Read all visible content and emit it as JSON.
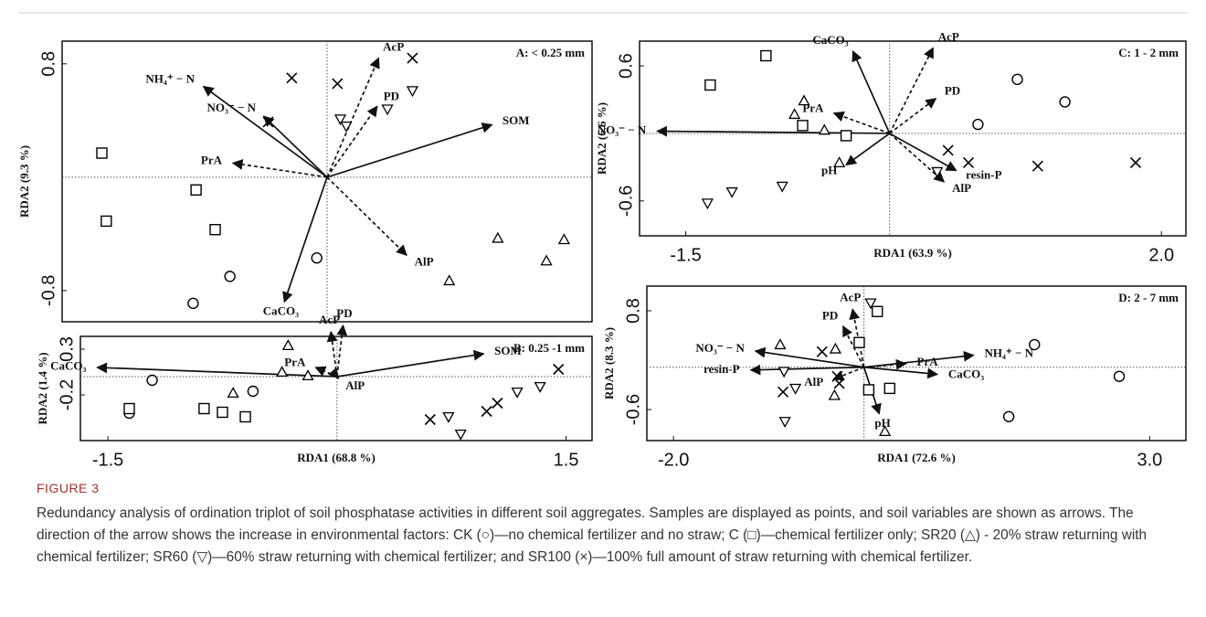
{
  "chart_data": [
    {
      "type": "scatter",
      "title": "A: < 0.25 mm",
      "ylabel": "RDA2 (9.3 %)",
      "xlim": [
        -1.8,
        1.8
      ],
      "ylim": [
        -1.02,
        0.96
      ],
      "yticks": [
        -0.8,
        0.8
      ],
      "series": [
        {
          "marker": "circle",
          "color": "#000000",
          "x": [
            -0.66,
            -0.91,
            -0.07
          ],
          "y": [
            -0.7,
            -0.89,
            -0.57
          ]
        },
        {
          "marker": "square",
          "color": "#000000",
          "x": [
            -1.53,
            -1.5,
            -0.89,
            -0.76
          ],
          "y": [
            0.17,
            -0.31,
            -0.09,
            -0.37
          ]
        },
        {
          "marker": "triangle-up",
          "color": "#000000",
          "x": [
            1.16,
            1.61,
            1.49,
            0.83
          ],
          "y": [
            -0.43,
            -0.44,
            -0.59,
            -0.73
          ]
        },
        {
          "marker": "triangle-down",
          "color": "#000000",
          "x": [
            0.58,
            0.41,
            0.09,
            0.13
          ],
          "y": [
            0.61,
            0.48,
            0.41,
            0.36
          ]
        },
        {
          "marker": "cross",
          "color": "#000000",
          "x": [
            -0.24,
            -0.4,
            0.07,
            0.58
          ],
          "y": [
            0.7,
            0.39,
            0.66,
            0.84
          ]
        }
      ],
      "arrows": [
        {
          "label": "NH₄⁺ − N",
          "style": "solid",
          "x": -0.84,
          "y": 0.64
        },
        {
          "label": "NO₃⁻ − N",
          "style": "solid",
          "x": -0.43,
          "y": 0.43
        },
        {
          "label": "SOM",
          "style": "solid",
          "x": 1.12,
          "y": 0.37
        },
        {
          "label": "CaCO₃",
          "style": "solid",
          "x": -0.29,
          "y": -0.88
        },
        {
          "label": "AcP",
          "style": "dashed",
          "x": 0.35,
          "y": 0.84
        },
        {
          "label": "PD",
          "style": "dashed",
          "x": 0.34,
          "y": 0.5
        },
        {
          "label": "PrA",
          "style": "dashed",
          "x": -0.64,
          "y": 0.1
        },
        {
          "label": "AlP",
          "style": "dashed",
          "x": 0.54,
          "y": -0.55
        }
      ]
    },
    {
      "type": "scatter",
      "title": "B: 0.25 -1 mm",
      "ylabel": "RDA2 (1.4 %)",
      "xlabel": "RDA1 (68.8 %)",
      "xlim": [
        -1.68,
        1.67
      ],
      "ylim": [
        -0.7,
        0.44
      ],
      "xticks": [
        -1.5,
        1.5
      ],
      "yticks": [
        -0.2,
        0.3
      ],
      "series": [
        {
          "marker": "circle",
          "color": "#000000",
          "x": [
            -1.21,
            -1.36,
            -0.55
          ],
          "y": [
            -0.04,
            -0.4,
            -0.16
          ]
        },
        {
          "marker": "square",
          "color": "#000000",
          "x": [
            -1.36,
            -0.87,
            -0.75,
            -0.6
          ],
          "y": [
            -0.35,
            -0.35,
            -0.39,
            -0.44
          ]
        },
        {
          "marker": "triangle-up",
          "color": "#000000",
          "x": [
            -0.32,
            -0.36,
            -0.19,
            -0.68
          ],
          "y": [
            0.34,
            0.05,
            0.01,
            -0.18
          ]
        },
        {
          "marker": "triangle-down",
          "color": "#000000",
          "x": [
            1.18,
            1.33,
            0.73,
            0.81
          ],
          "y": [
            -0.17,
            -0.11,
            -0.44,
            -0.63
          ]
        },
        {
          "marker": "cross",
          "color": "#000000",
          "x": [
            1.45,
            1.05,
            0.98,
            0.61
          ],
          "y": [
            0.08,
            -0.29,
            -0.38,
            -0.47
          ]
        }
      ],
      "arrows": [
        {
          "label": "CaCO₃",
          "style": "solid",
          "x": -1.57,
          "y": 0.1
        },
        {
          "label": "SOM",
          "style": "solid",
          "x": 0.96,
          "y": 0.25
        },
        {
          "label": "AcP",
          "style": "dashed",
          "x": -0.04,
          "y": 0.49
        },
        {
          "label": "PD",
          "style": "dashed",
          "x": 0.04,
          "y": 0.56
        },
        {
          "label": "PrA",
          "style": "dashed",
          "x": -0.14,
          "y": 0.1
        },
        {
          "label": "AlP",
          "style": "dashed",
          "x": 0.01,
          "y": -0.02
        }
      ]
    },
    {
      "type": "scatter",
      "title": "C: 1 - 2 mm",
      "ylabel": "RDA2 (6.6 %)",
      "xlabel": "RDA1 (63.9 %)",
      "xlim": [
        -1.84,
        2.18
      ],
      "ylim": [
        -0.91,
        0.82
      ],
      "xticks": [
        -1.5,
        {
          "value": 2.0,
          "label": "2.0"
        }
      ],
      "yticks": [
        -0.6,
        0.6
      ],
      "series": [
        {
          "marker": "circle",
          "color": "#000000",
          "x": [
            0.94,
            1.29,
            0.65
          ],
          "y": [
            0.48,
            0.28,
            0.08
          ]
        },
        {
          "marker": "square",
          "color": "#000000",
          "x": [
            -0.91,
            -1.32,
            -0.64,
            -0.32
          ],
          "y": [
            0.69,
            0.43,
            0.07,
            -0.02
          ]
        },
        {
          "marker": "triangle-up",
          "color": "#000000",
          "x": [
            -0.63,
            -0.7,
            -0.48,
            -0.37
          ],
          "y": [
            0.29,
            0.17,
            0.03,
            -0.26
          ]
        },
        {
          "marker": "triangle-down",
          "color": "#000000",
          "x": [
            -1.34,
            -1.16,
            -0.79,
            0.35
          ],
          "y": [
            -0.62,
            -0.52,
            -0.47,
            -0.34
          ]
        },
        {
          "marker": "cross",
          "color": "#000000",
          "x": [
            0.43,
            0.58,
            1.09,
            1.81
          ],
          "y": [
            -0.15,
            -0.26,
            -0.29,
            -0.26
          ]
        }
      ],
      "arrows": [
        {
          "label": "CaCO₃",
          "style": "solid",
          "x": -0.27,
          "y": 0.73
        },
        {
          "label": "AcP",
          "style": "dashed",
          "x": 0.32,
          "y": 0.76
        },
        {
          "label": "PD",
          "style": "dashed",
          "x": 0.34,
          "y": 0.31
        },
        {
          "label": "PrA",
          "style": "dashed",
          "x": -0.41,
          "y": 0.18
        },
        {
          "label": "NO₃⁻ − N",
          "style": "solid",
          "x": -1.71,
          "y": 0.02
        },
        {
          "label": "pH",
          "style": "solid",
          "x": -0.32,
          "y": -0.28
        },
        {
          "label": "AlP",
          "style": "dashed",
          "x": 0.4,
          "y": -0.43
        },
        {
          "label": "resin-P",
          "style": "solid",
          "x": 0.49,
          "y": -0.33
        }
      ]
    },
    {
      "type": "scatter",
      "title": "D: 2 - 7 mm",
      "ylabel": "RDA2 (8.3 %)",
      "xlabel": "RDA1 (72.6 %)",
      "xlim": [
        -2.28,
        3.38
      ],
      "ylim": [
        -1.04,
        1.15
      ],
      "xticks": [
        {
          "value": -2.0,
          "label": "-2.0"
        },
        {
          "value": 3.0,
          "label": "3.0"
        }
      ],
      "yticks": [
        -0.6,
        0.8
      ],
      "series": [
        {
          "marker": "circle",
          "color": "#000000",
          "x": [
            1.79,
            2.68,
            1.52
          ],
          "y": [
            0.32,
            -0.13,
            -0.7
          ]
        },
        {
          "marker": "square",
          "color": "#000000",
          "x": [
            0.14,
            -0.05,
            0.05,
            0.27
          ],
          "y": [
            0.79,
            0.35,
            -0.32,
            -0.3
          ]
        },
        {
          "marker": "triangle-up",
          "color": "#000000",
          "x": [
            -0.88,
            -0.3,
            -0.31,
            0.22
          ],
          "y": [
            0.32,
            0.26,
            -0.4,
            -0.91
          ]
        },
        {
          "marker": "triangle-down",
          "color": "#000000",
          "x": [
            0.07,
            -0.84,
            -0.72,
            -0.83
          ],
          "y": [
            0.91,
            -0.06,
            -0.3,
            -0.77
          ]
        },
        {
          "marker": "cross",
          "color": "#000000",
          "x": [
            -0.44,
            -0.28,
            -0.26,
            -0.85
          ],
          "y": [
            0.22,
            -0.13,
            -0.23,
            -0.35
          ]
        }
      ],
      "arrows": [
        {
          "label": "AcP",
          "style": "dashed",
          "x": -0.12,
          "y": 0.82
        },
        {
          "label": "PD",
          "style": "dashed",
          "x": -0.22,
          "y": 0.58
        },
        {
          "label": "NO₃⁻ − N",
          "style": "solid",
          "x": -1.14,
          "y": 0.23
        },
        {
          "label": "resin-P",
          "style": "solid",
          "x": -1.19,
          "y": -0.04
        },
        {
          "label": "AlP",
          "style": "dashed",
          "x": -0.32,
          "y": -0.17
        },
        {
          "label": "PrA",
          "style": "dashed",
          "x": 0.44,
          "y": 0.05
        },
        {
          "label": "NH₄⁺ − N",
          "style": "solid",
          "x": 1.15,
          "y": 0.17
        },
        {
          "label": "CaCO₃",
          "style": "solid",
          "x": 0.77,
          "y": -0.1
        },
        {
          "label": "pH",
          "style": "solid",
          "x": 0.16,
          "y": -0.66
        }
      ]
    }
  ],
  "figure": {
    "label": "FIGURE 3",
    "caption": "Redundancy analysis of ordination triplot of soil phosphatase activities in different soil aggregates. Samples are displayed as points, and soil variables are shown as arrows. The direction of the arrow shows the increase in environmental factors: CK (○)—no chemical fertilizer and no straw; C (□)—chemical fertilizer only; SR20 (△) - 20% straw returning with chemical fertilizer; SR60 (▽)—60% straw returning with chemical fertilizer; and SR100 (×)—100% full amount of straw returning with chemical fertilizer."
  }
}
